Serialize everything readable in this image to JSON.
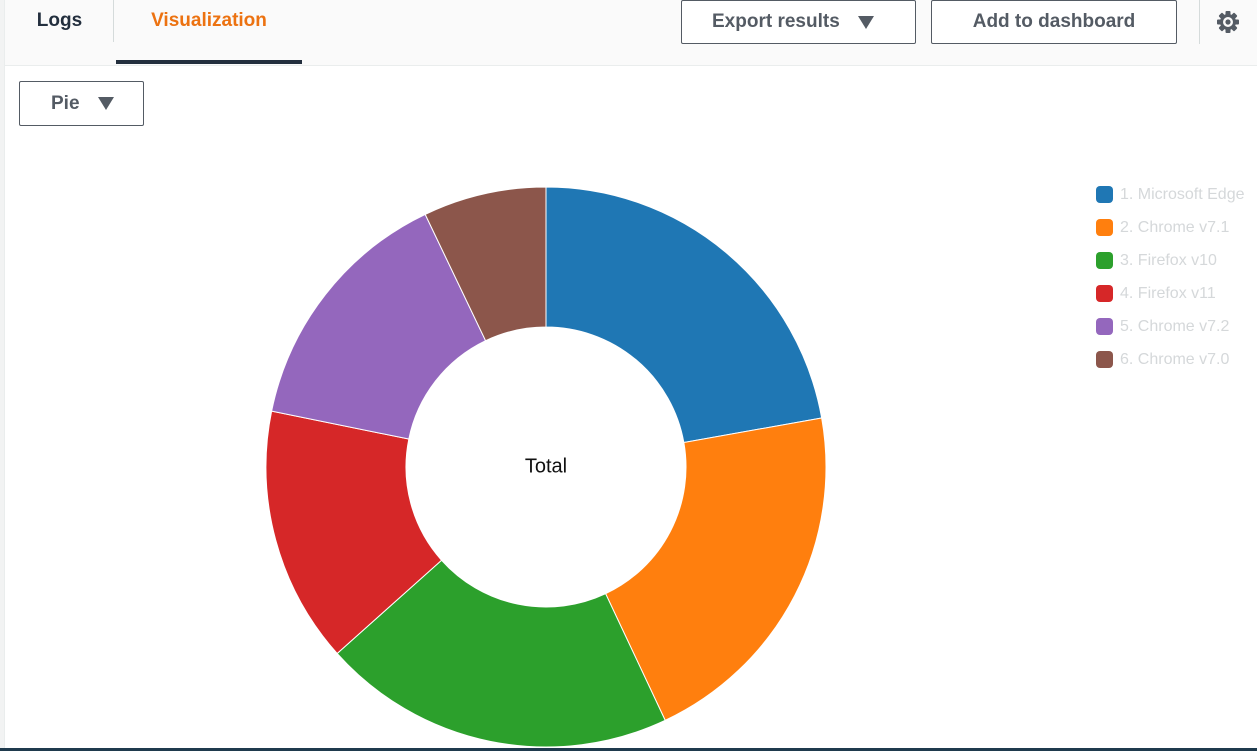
{
  "tabs": [
    {
      "label": "Logs",
      "active": false
    },
    {
      "label": "Visualization",
      "active": true
    }
  ],
  "toolbar": {
    "export_label": "Export results",
    "add_label": "Add to dashboard",
    "settings_icon": "gear-icon"
  },
  "chart_type_select": {
    "value": "Pie"
  },
  "colors": {
    "accent": "#ec7211",
    "text_dark": "#232f3e",
    "button_text": "#545b64",
    "legend_text": "#d5d8da"
  },
  "chart_data": {
    "type": "pie",
    "donut": true,
    "center_label": "Total",
    "legend_position": "right",
    "categories": [
      "1. Microsoft Edge",
      "2. Chrome v7.1",
      "3. Firefox v10",
      "4. Firefox v11",
      "5. Chrome v7.2",
      "6. Chrome v7.0"
    ],
    "values": [
      22.2,
      20.8,
      20.4,
      14.8,
      14.7,
      7.1
    ],
    "colors": [
      "#1f77b4",
      "#ff7f0e",
      "#2ca02c",
      "#d62728",
      "#9467bd",
      "#8c564b"
    ]
  }
}
